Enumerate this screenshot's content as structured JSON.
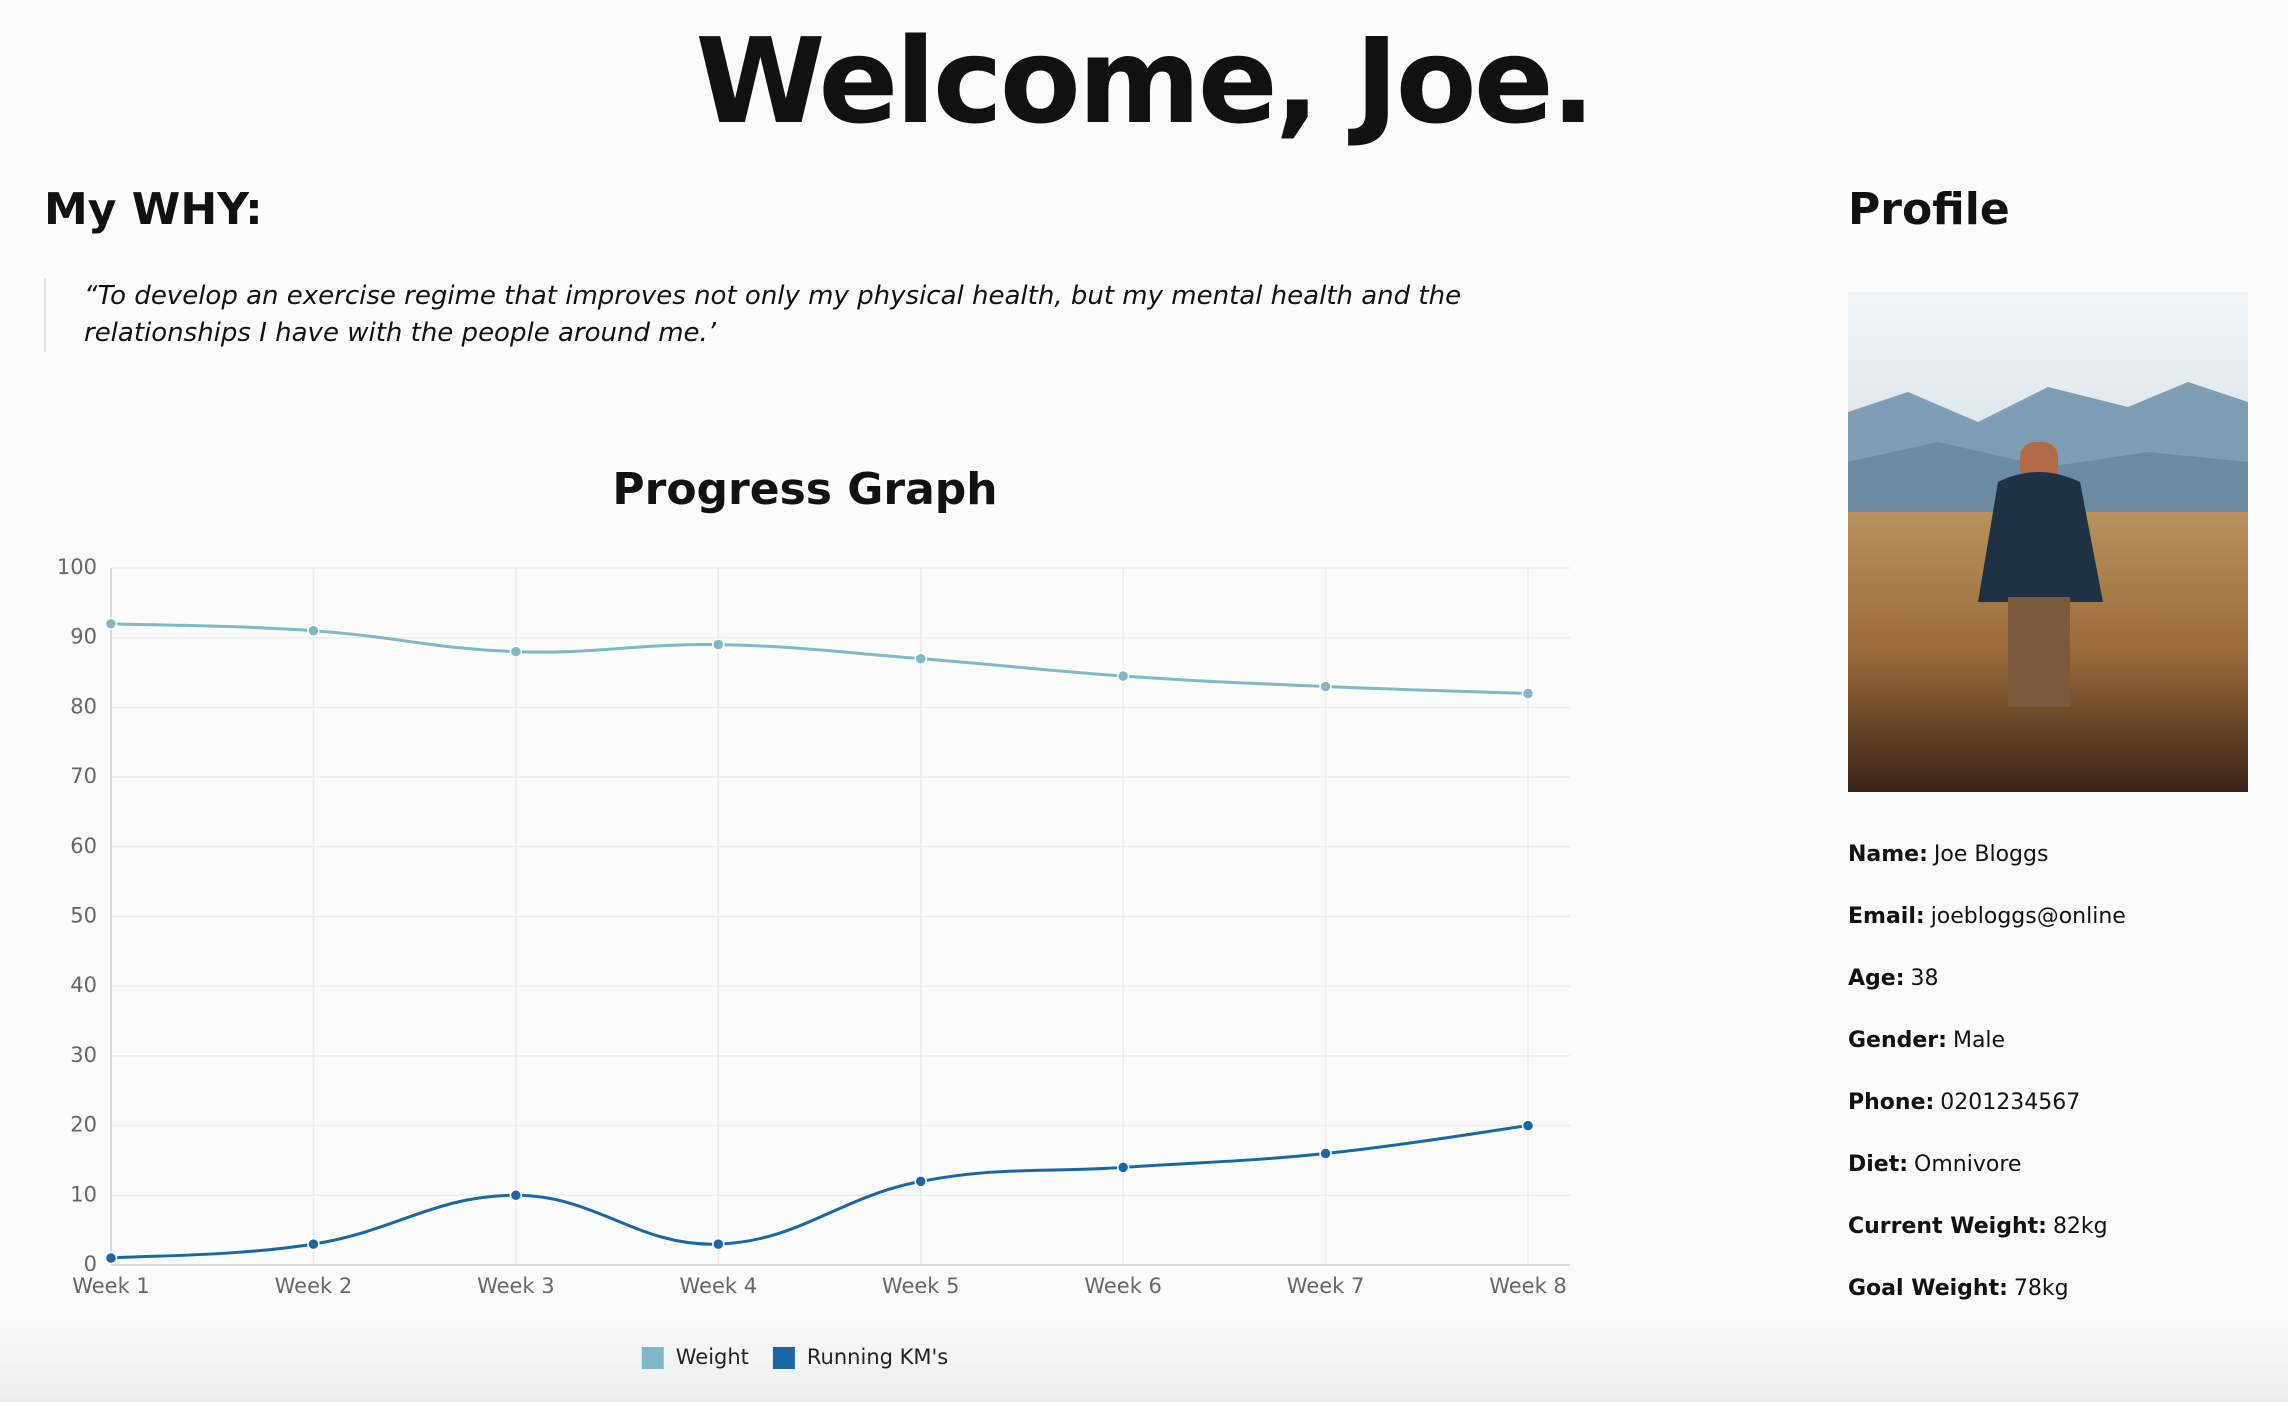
{
  "header": {
    "title": "Welcome, Joe."
  },
  "why": {
    "heading": "My WHY:",
    "quote": "“To develop an exercise regime that improves not only my physical health, but my mental health and the relationships I have with the people around me.’"
  },
  "chart_data": {
    "type": "line",
    "title": "Progress Graph",
    "categories": [
      "Week 1",
      "Week 2",
      "Week 3",
      "Week 4",
      "Week 5",
      "Week 6",
      "Week 7",
      "Week 8"
    ],
    "series": [
      {
        "name": "Weight",
        "color": "#7fb8c9",
        "values": [
          92,
          91,
          88,
          89,
          87,
          84.5,
          83,
          82
        ]
      },
      {
        "name": "Running KM's",
        "color": "#1a67a8",
        "values": [
          1,
          3,
          10,
          3,
          12,
          14,
          16,
          20
        ]
      }
    ],
    "ylim": [
      0,
      100
    ],
    "yticks": [
      0,
      10,
      20,
      30,
      40,
      50,
      60,
      70,
      80,
      90,
      100
    ],
    "grid": true,
    "legend": "bottom"
  },
  "profile": {
    "heading": "Profile",
    "fields": [
      {
        "label": "Name:",
        "value": "Joe Bloggs"
      },
      {
        "label": "Email:",
        "value": "joebloggs@online"
      },
      {
        "label": "Age:",
        "value": "38"
      },
      {
        "label": "Gender:",
        "value": "Male"
      },
      {
        "label": "Phone:",
        "value": "0201234567"
      },
      {
        "label": "Diet:",
        "value": "Omnivore"
      },
      {
        "label": "Current Weight:",
        "value": "82kg"
      },
      {
        "label": "Goal Weight:",
        "value": "78kg"
      }
    ]
  }
}
